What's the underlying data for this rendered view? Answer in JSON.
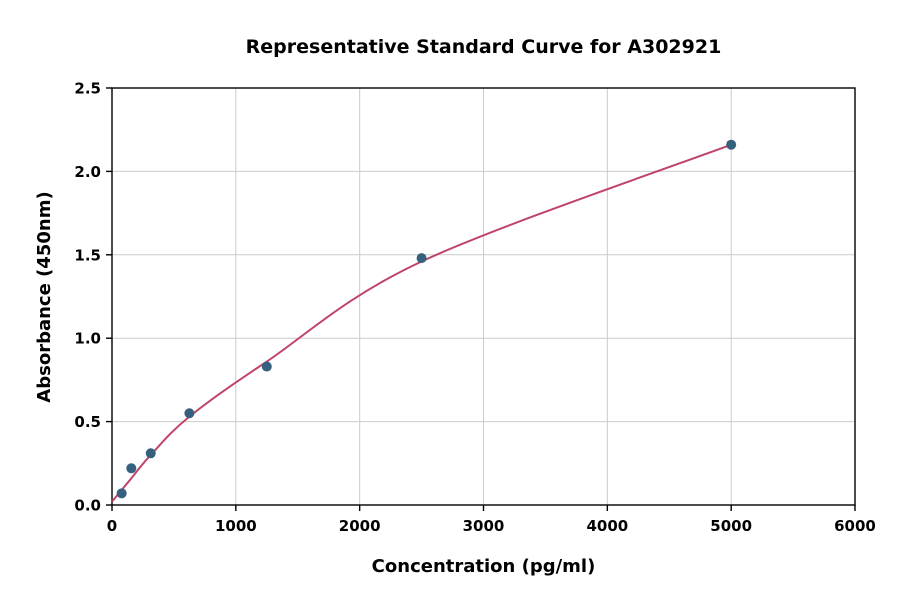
{
  "chart_data": {
    "type": "scatter",
    "title": "Representative Standard Curve for A302921",
    "xlabel": "Concentration (pg/ml)",
    "ylabel": "Absorbance (450nm)",
    "xlim": [
      0,
      6000
    ],
    "ylim": [
      0,
      2.5
    ],
    "grid": true,
    "legend": "none",
    "x_ticks": [
      0,
      1000,
      2000,
      3000,
      4000,
      5000,
      6000
    ],
    "x_tick_labels": [
      "0",
      "1000",
      "2000",
      "3000",
      "4000",
      "5000",
      "6000"
    ],
    "y_ticks": [
      0.0,
      0.5,
      1.0,
      1.5,
      2.0,
      2.5
    ],
    "y_tick_labels": [
      "0.0",
      "0.5",
      "1.0",
      "1.5",
      "2.0",
      "2.5"
    ],
    "points": {
      "name": "standard-measurements",
      "x": [
        78,
        156,
        313,
        625,
        1250,
        2500,
        5000
      ],
      "y": [
        0.07,
        0.22,
        0.31,
        0.55,
        0.83,
        1.48,
        2.16
      ]
    },
    "curve": {
      "name": "fitted-standard-curve",
      "x": [
        0,
        78,
        156,
        313,
        625,
        1250,
        2500,
        5000
      ],
      "y": [
        0.02,
        0.09,
        0.16,
        0.3,
        0.53,
        0.86,
        1.46,
        2.16
      ]
    },
    "colors": {
      "point": "#35607e",
      "curve": "#c0436a",
      "grid": "#cccccc",
      "axis": "#000000",
      "background": "#ffffff"
    }
  }
}
